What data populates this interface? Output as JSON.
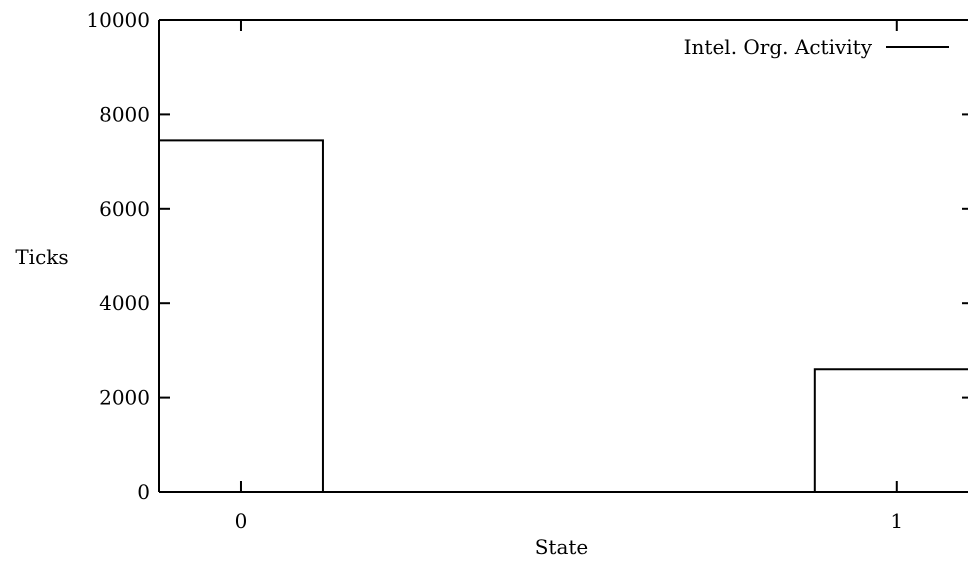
{
  "chart_data": {
    "type": "bar",
    "style": "histogram-steps",
    "categories": [
      "0",
      "1"
    ],
    "x": [
      0,
      1
    ],
    "series": [
      {
        "name": "Intel. Org. Activity",
        "values": [
          7450,
          2600
        ]
      }
    ],
    "title": "",
    "xlabel": "State",
    "ylabel": "Ticks",
    "ylim": [
      0,
      10000
    ],
    "yticks": [
      0,
      2000,
      4000,
      6000,
      8000,
      10000
    ],
    "xticks": [
      0,
      1
    ],
    "grid": false,
    "legend_position": "top-right",
    "line_color": "#000000"
  }
}
